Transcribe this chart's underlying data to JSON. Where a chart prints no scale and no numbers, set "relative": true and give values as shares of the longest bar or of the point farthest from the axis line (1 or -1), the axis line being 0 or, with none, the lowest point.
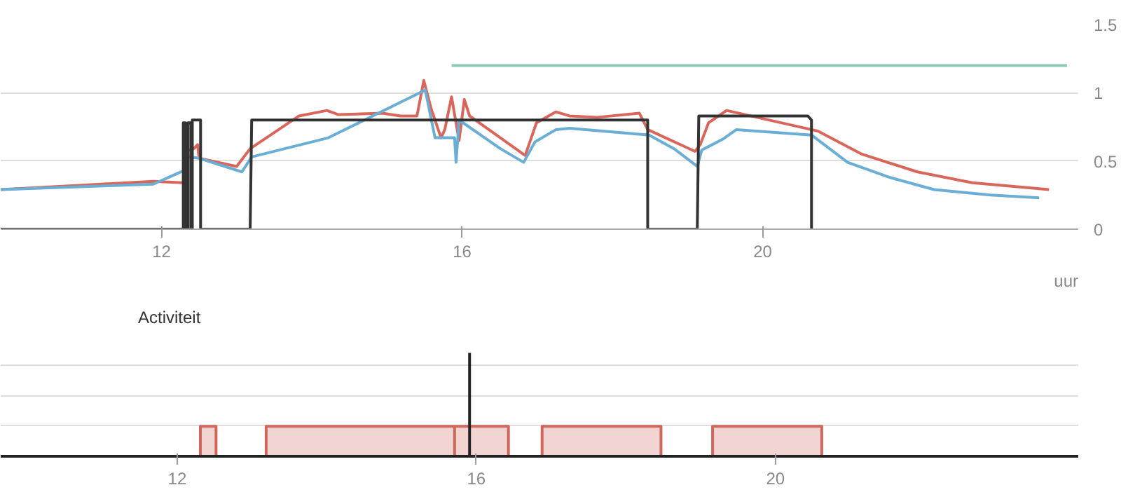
{
  "chart_data": [
    {
      "type": "line",
      "xlabel": "uur",
      "xlim": [
        9.86,
        24.2
      ],
      "ylim": [
        0,
        1.5
      ],
      "xticks": [
        12,
        16,
        20
      ],
      "yticks": [
        0,
        0.5,
        1,
        1.5
      ],
      "grid": "y",
      "series": [
        {
          "color": "#8ec9b4",
          "x": [
            15.86,
            24.05
          ],
          "values": [
            1.2,
            1.2
          ]
        },
        {
          "color": "#d9665b",
          "x": [
            9.86,
            11.89,
            12.3,
            12.31,
            12.43,
            12.48,
            12.5,
            13.0,
            13.18,
            13.83,
            14.2,
            14.35,
            14.94,
            15.18,
            15.4,
            15.49,
            15.59,
            15.72,
            15.77,
            15.86,
            15.96,
            16.03,
            16.1,
            16.84,
            16.99,
            17.25,
            17.43,
            17.8,
            18.36,
            18.47,
            19.1,
            19.17,
            19.28,
            19.52,
            20.73,
            21.32,
            22.06,
            22.79,
            23.81
          ],
          "values": [
            0.29,
            0.35,
            0.34,
            0.57,
            0.59,
            0.62,
            0.52,
            0.46,
            0.59,
            0.83,
            0.87,
            0.84,
            0.85,
            0.83,
            0.83,
            1.09,
            0.88,
            0.67,
            0.73,
            0.97,
            0.65,
            0.95,
            0.83,
            0.54,
            0.78,
            0.86,
            0.83,
            0.82,
            0.85,
            0.73,
            0.57,
            0.62,
            0.78,
            0.87,
            0.72,
            0.55,
            0.42,
            0.34,
            0.29
          ]
        },
        {
          "color": "#6aaed6",
          "x": [
            9.86,
            11.89,
            12.3,
            12.35,
            12.5,
            13.07,
            13.2,
            14.22,
            15.51,
            15.64,
            15.9,
            15.92,
            15.96,
            16.51,
            16.82,
            16.97,
            17.25,
            17.43,
            18.49,
            18.82,
            19.13,
            19.19,
            19.47,
            19.65,
            20.65,
            21.13,
            21.69,
            22.28,
            23.03,
            23.68
          ],
          "values": [
            0.29,
            0.33,
            0.43,
            0.53,
            0.52,
            0.42,
            0.53,
            0.67,
            1.02,
            0.67,
            0.67,
            0.49,
            0.8,
            0.59,
            0.49,
            0.64,
            0.73,
            0.74,
            0.69,
            0.59,
            0.46,
            0.58,
            0.66,
            0.73,
            0.69,
            0.49,
            0.38,
            0.29,
            0.25,
            0.23
          ]
        },
        {
          "color": "#333333",
          "x": [
            9.86,
            12.29,
            12.29,
            12.32,
            12.32,
            12.35,
            12.35,
            12.39,
            12.39,
            12.41,
            12.41,
            12.52,
            12.52,
            13.18,
            13.2,
            18.47,
            18.47,
            19.13,
            19.15,
            20.6,
            20.65,
            20.65
          ],
          "values": [
            0,
            0,
            0.78,
            0.78,
            0,
            0,
            0.78,
            0.78,
            0,
            0,
            0.8,
            0.8,
            0,
            0,
            0.8,
            0.8,
            0,
            0,
            0.83,
            0.83,
            0.8,
            0
          ]
        }
      ]
    },
    {
      "type": "area",
      "title": "Activiteit",
      "relative": true,
      "xlim": [
        9.64,
        24.05
      ],
      "xticks": [
        12,
        16,
        20
      ],
      "tick_labels": "x",
      "grid": "y",
      "series": [
        {
          "color": "#d0675d",
          "x": [
            12.31,
            12.31,
            12.52,
            12.52,
            13.19,
            13.19,
            15.71,
            15.71,
            15.71,
            16.43,
            16.43,
            16.88,
            16.88,
            18.47,
            18.47,
            19.16,
            19.16,
            20.62,
            20.62
          ],
          "values": [
            0,
            0.29,
            0.29,
            0,
            0,
            0.29,
            0.29,
            0,
            0.29,
            0.29,
            0,
            0,
            0.29,
            0.29,
            0,
            0,
            0.29,
            0.29,
            0
          ]
        },
        {
          "type": "line",
          "color": "#222222",
          "x": [
            15.91,
            15.91
          ],
          "values": [
            0,
            1
          ]
        }
      ]
    }
  ]
}
